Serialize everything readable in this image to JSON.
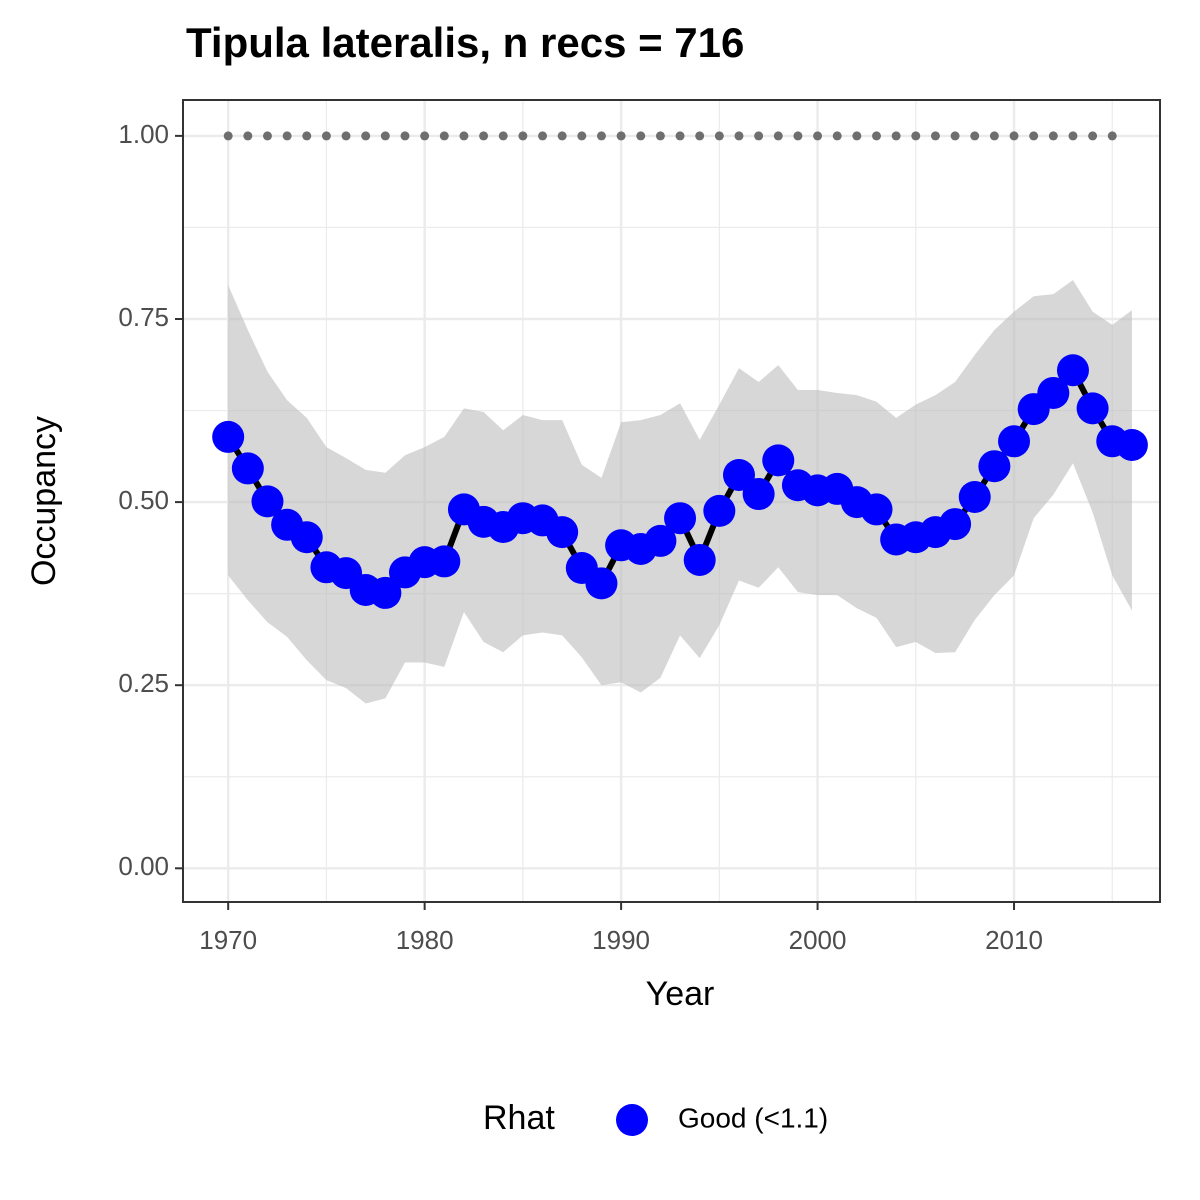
{
  "chart_data": {
    "type": "line",
    "title": "Tipula lateralis, n recs = 716",
    "x_label": "Year",
    "y_label": "Occupancy",
    "legend_title": "Rhat",
    "legend_position": "bottom",
    "x": [
      1970,
      1971,
      1972,
      1973,
      1974,
      1975,
      1976,
      1977,
      1978,
      1979,
      1980,
      1981,
      1982,
      1983,
      1984,
      1985,
      1986,
      1987,
      1988,
      1989,
      1990,
      1991,
      1992,
      1993,
      1994,
      1995,
      1996,
      1997,
      1998,
      1999,
      2000,
      2001,
      2002,
      2003,
      2004,
      2005,
      2006,
      2007,
      2008,
      2009,
      2010,
      2011,
      2012,
      2013,
      2014,
      2015,
      2016
    ],
    "series": [
      {
        "name": "Good (<1.1)",
        "color": "#0000ff",
        "line_color": "#000000",
        "band_color": "#bdbdbd",
        "values": [
          0.589,
          0.546,
          0.501,
          0.469,
          0.452,
          0.411,
          0.403,
          0.38,
          0.376,
          0.404,
          0.418,
          0.419,
          0.49,
          0.473,
          0.466,
          0.478,
          0.475,
          0.459,
          0.41,
          0.389,
          0.441,
          0.436,
          0.447,
          0.478,
          0.421,
          0.488,
          0.537,
          0.511,
          0.557,
          0.523,
          0.516,
          0.518,
          0.5,
          0.49,
          0.449,
          0.452,
          0.459,
          0.47,
          0.507,
          0.549,
          0.583,
          0.627,
          0.649,
          0.68,
          0.628,
          0.583,
          0.578
        ],
        "upper": [
          0.796,
          0.735,
          0.678,
          0.639,
          0.615,
          0.575,
          0.56,
          0.544,
          0.54,
          0.564,
          0.575,
          0.589,
          0.628,
          0.623,
          0.598,
          0.619,
          0.612,
          0.612,
          0.551,
          0.533,
          0.609,
          0.612,
          0.619,
          0.635,
          0.585,
          0.633,
          0.683,
          0.664,
          0.687,
          0.653,
          0.653,
          0.649,
          0.646,
          0.637,
          0.615,
          0.633,
          0.646,
          0.664,
          0.701,
          0.735,
          0.76,
          0.781,
          0.784,
          0.803,
          0.76,
          0.742,
          0.762
        ],
        "lower": [
          0.4,
          0.366,
          0.336,
          0.316,
          0.284,
          0.257,
          0.246,
          0.225,
          0.232,
          0.281,
          0.281,
          0.275,
          0.35,
          0.309,
          0.295,
          0.318,
          0.322,
          0.318,
          0.288,
          0.25,
          0.254,
          0.24,
          0.26,
          0.318,
          0.287,
          0.332,
          0.393,
          0.383,
          0.411,
          0.377,
          0.373,
          0.373,
          0.355,
          0.342,
          0.302,
          0.309,
          0.294,
          0.295,
          0.339,
          0.373,
          0.4,
          0.478,
          0.51,
          0.553,
          0.486,
          0.4,
          0.352
        ]
      },
      {
        "color": "#6e6e6e",
        "values": [
          1,
          1,
          1,
          1,
          1,
          1,
          1,
          1,
          1,
          1,
          1,
          1,
          1,
          1,
          1,
          1,
          1,
          1,
          1,
          1,
          1,
          1,
          1,
          1,
          1,
          1,
          1,
          1,
          1,
          1,
          1,
          1,
          1,
          1,
          1,
          1,
          1,
          1,
          1,
          1,
          1,
          1,
          1,
          1,
          1,
          1,
          null
        ]
      }
    ],
    "xlim": [
      1967.7,
      2017.43
    ],
    "ylim": [
      -0.046,
      1.049
    ],
    "xticks": [
      1970,
      1980,
      1990,
      2000,
      2010
    ],
    "yticks": [
      {
        "value": 0,
        "label": "0.00"
      },
      {
        "value": 0.25,
        "label": "0.25"
      },
      {
        "value": 0.5,
        "label": "0.50"
      },
      {
        "value": 0.75,
        "label": "0.75"
      },
      {
        "value": 1,
        "label": "1.00"
      }
    ],
    "grid": true,
    "minor_grid": true
  }
}
